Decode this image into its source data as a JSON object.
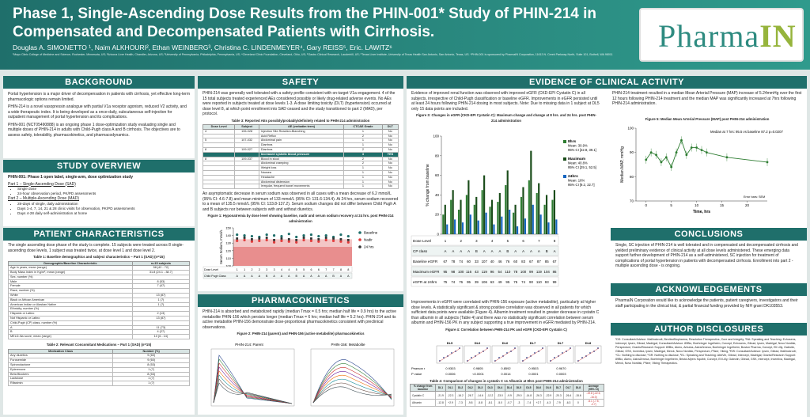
{
  "header": {
    "title": "Phase 1, Single-Ascending Dose Results from the PHIN-001* Study of PHIN-214 in Compensated and Decompensated Patients with Cirrhosis.",
    "authors": "Douglas A. SIMONETTO ¹, Naim ALKHOURI², Ethan WEINBERG³, Christina C. LINDENMEYER⁴, Gary REISS⁵, Eric. LAWITZ⁶",
    "affiliations": "¹Mayo Clinic College of Medicine and Science, Rochester, Minnesota, US; ²Arizona Liver Health, Chandler, Arizona, US; ³University of Pennsylvania, Philadelphia, Pennsylvania, US; ⁴Cleveland Clinic Foundation, Cleveland, Ohio, US; ⁵Gastro Clinical Research, Lauderhill, US; ⁶Texas Liver Institute, University of Texas Health San Antonio, San Antonio, Texas, US. *PHIN-001 is sponsored by PharmaIN Corporation, 11613 N. Creek Parkway North, Suite 101, Bothell, WA 98011",
    "logo_main": "Pharma",
    "logo_accent": "IN"
  },
  "background": {
    "heading": "BACKGROUND",
    "p1": "Portal hypertension is a major driver of decompensation in patients with cirrhosis, yet effective long-term pharmacologic options remain limited.",
    "p2": "PHIN-214 is a novel vasopressin analogue with partial V1a receptor agonism, reduced V2 activity, and a wide therapeutic index. It is being developed as a once-daily, subcutaneous self-injection for outpatient management of portal hypertension and its complications.",
    "p3": "PHIN-001 (NCT05490888) is an ongoing phase 1 dose-optimization study evaluating single and multiple doses of PHIN-214 in adults with Child-Pugh class A and B cirrhosis. The objectives are to assess safety, tolerability, pharmacokinetics, and pharmacodynamics."
  },
  "study": {
    "heading": "STUDY OVERVIEW",
    "subtitle": "PHIN-001: Phase 1 open label, single-arm, dose optimization study",
    "part1": "Part 1 – Single-Ascending Dose (SAD)",
    "part1_items": [
      "Single dose",
      "24-hour observation period, PK/PD assessments"
    ],
    "part2": "Part 2 – Multiple-Ascending Dose (MAD)",
    "part2_items": [
      "28-days of single, daily administration",
      "Days 1-4, 7, 14, 21 & 28 clinic visits for observation, PK/PD assessments",
      "Days 4-28 daily self-administration at home"
    ]
  },
  "patients": {
    "heading": "PATIENT CHARACTERISTICS",
    "intro": "The single ascending dose phase of the study is complete. 15 subjects were treated across 8 single-ascending dose levels, 1 subject was treated twice, at dose level 1 and dose level 2.",
    "table1_title": "Table 1: Baseline demographics and subject characteristics – Part 1 (SAD) (n=15)",
    "table1_head": [
      "Demographic/Baseline Characteristic",
      "n=15 subjects"
    ],
    "table1_rows": [
      [
        "Age in years, mean (range)",
        "58 (42 - 72)"
      ],
      [
        "Body Mass Index in Kg/m², mean (range)",
        "31.8 (24.1 - 38.7)"
      ],
      [
        "Sex, number (%)",
        ""
      ],
      [
        "   Male",
        "8 (53)"
      ],
      [
        "   Female",
        "7 (47)"
      ],
      [
        "Race, number (%)",
        ""
      ],
      [
        "   White",
        "13 (87)"
      ],
      [
        "   Black or African American",
        "1 (7)"
      ],
      [
        "   American Indian or Alaskan Native",
        "1 (7)"
      ],
      [
        "Ethnicity, number (%)",
        ""
      ],
      [
        "   Hispanic or Latino",
        "2 (13)"
      ],
      [
        "   Not Hispanic or Latino",
        "13 (87)"
      ],
      [
        "Child-Pugh (CP) class, number (%)",
        ""
      ],
      [
        "   A",
        "11 (73)"
      ],
      [
        "   B",
        "4 (27)"
      ],
      [
        "MELD-Na score, mean (range)",
        "10 (6 - 14)"
      ]
    ],
    "table2_title": "Table 2: Relevant Concomitant Medications – Part 1 (SAD) (n=15)",
    "table2_head": [
      "Medication Class",
      "Number (%)"
    ],
    "table2_rows": [
      [
        "Any diuretics",
        "9 (60)"
      ],
      [
        "   Furosemide",
        "9 (60)"
      ],
      [
        "   Spironolactone",
        "8 (53)"
      ],
      [
        "   Eplerenone",
        "1 (7)"
      ],
      [
        "Beta Blockers",
        "8 (53)"
      ],
      [
        "Lactulose",
        "1 (7)"
      ],
      [
        "Rifaximin",
        "1 (7)"
      ]
    ]
  },
  "safety": {
    "heading": "SAFETY",
    "p1": "PHIN-214 was generally well tolerated with a safety profile consistent with on-target V1a engagement. 4 of the 15 total subjects treated experienced AEs considered possibly or likely drug-related adverse events. No AEs were reported in subjects treated at dose levels 1-3. A dose limiting toxicity (DLT) (hypertension) occurred at dose level 8, at which point enrollment into SAD ceased and the study transitioned to part 2 (MAD), per protocol.",
    "table3_title": "Table 3: Reported AEs possibly/probably/definitely related to PHIN-214 administration",
    "table3_head": [
      "Dose Level",
      "Subject",
      "AE (verbatim term)",
      "CTCAE Grade",
      "DLT"
    ],
    "table3_rows": [
      [
        "4",
        "106-028",
        "Injection Site Reaction-Blanching",
        "1",
        "No",
        ""
      ],
      [
        "",
        "",
        "Acid Reflux",
        "2",
        "No",
        ""
      ],
      [
        "5",
        "107-032",
        "Abdominal pain",
        "1",
        "No",
        ""
      ],
      [
        "",
        "",
        "Diarrhea",
        "1",
        "No",
        ""
      ],
      [
        "8",
        "109-027",
        "Diarrhea",
        "2",
        "No",
        ""
      ],
      [
        "",
        "",
        "Increased systolic blood pressure",
        "3",
        "YES",
        "hl"
      ],
      [
        "8",
        "109-037",
        "Blood in stool",
        "2",
        "No",
        ""
      ],
      [
        "",
        "",
        "Abdominal cramping",
        "2",
        "No",
        ""
      ],
      [
        "",
        "",
        "Weight loss",
        "1",
        "No",
        ""
      ],
      [
        "",
        "",
        "Nausea",
        "1",
        "No",
        ""
      ],
      [
        "",
        "",
        "Headache",
        "1",
        "No",
        ""
      ],
      [
        "",
        "",
        "Abdominal distension",
        "1",
        "No",
        ""
      ],
      [
        "",
        "",
        "Irregular, frequent bowel movements",
        "1",
        "No",
        ""
      ]
    ],
    "p2": "An asymptomatic decrease in serum sodium was observed in all cases with a mean decrease of 6.2 mmol/L (95% CI: 4.6-7.8) and mean minimum of 133 mmol/L (95% CI: 131.6-134.4). At 24 hrs, serum sodium recovered to a mean of 135.5 mmol/L (95% CI: 133.8-137.2). Serum sodium changes did not differ between Child Pugh A and B subjects nor between subjects with and without diuretics.",
    "fig1_title": "Figure 1: Hyponatremia by dose level showing baseline, nadir and serum sodium recovery at 24 hrs. post PHIN-214 administration"
  },
  "pk": {
    "heading": "PHARMACOKINETICS",
    "p1": "PHIN-214 is absorbed and metabolized rapidly (median Tmax = 0.5 hrs; median half life = 0.9 hrs) to the active metabolite PHIN-156 which persists longer (median Tmax = 6 hrs; median half life = 5.2 hrs). PHIN-214 and its active metabolite PHIN-156 demonstrate dose-proportional pharmacokinetics consistent with preclinical observations.",
    "fig2_title": "Figure 2: PHIN-214 (parent) and PHIN-156 (active metabolite) pharmacokinetics",
    "fig2_left": "PHIN-214: Parent",
    "fig2_right": "PHIN-156: Metabolite"
  },
  "evidence": {
    "heading": "EVIDENCE OF CLINICAL ACTIVITY",
    "p1": "Evidence of improved renal function was observed with improved eGFR (CKD-EPI Cystatin C) in all subjects, irrespective of Child-Pugh classification or baseline eGFR. Improvements in eGFR persisted until at least 24 hours following PHIN-214 dosing in most subjects. Note: Due to missing data in 1 subject at DL5 only 15 data points are included.",
    "fig3_title": "Figure 3: Changes in eGFR (CKD-EPI Cystatin C): Maximum change and change at 8 hrs. and 24 hrs. post PHIN-214 administration",
    "p2": "Improvements in eGFR were correlated with PHIN-156 exposure (active metabolite), particularly at higher dose levels. A statistically significant & strong positive correlation was observed in all patients for which sufficient data points were available (Figure 4). Albumin treatment resulted in greater decrease in cystatin C than albumin in all subjects (Table 4) and there was no statistically significant correlation between serum albumin and PHIN-156 PK in any subject supporting a true improvement in eGFR mediated by PHIN-214.",
    "fig4_title": "Figure 4: Correlation between PHIN-214 PK and eGFR (CKD-EPI Cystatin C)",
    "table4_title": "Table 4: Comparison of changes in cystatin C vs Albumin at 8hrs post PHIN-214 administration",
    "p3": "PHIN-214 treatment resulted in a median Mean Arterial Pressure (MAP) increase of 5.24mmHg over the first 12 hours following PHIN-214 treatment and the median MAP was significantly increased at 7hrs following PHIN-214 administration.",
    "fig5_title": "Figure 5: Median Mean Arterial Pressure (MAP) post PHIN-214 administration"
  },
  "conclusions": {
    "heading": "CONCLUSIONS",
    "text": "Single, SC injection of PHIN-214 is well tolerated and in compensated and decompensated cirrhosis and yielded preliminary evidence of clinical activity at all dose levels administered. These emerging data support further development of PHIN-214 as a self-administered, SC injection for treatment of complications of portal hypertension in patients with decompensated cirrhosis. Enrollment into part 2 - multiple ascending dose - is ongoing."
  },
  "ack": {
    "heading": "ACKNOWLEDGEMENTS",
    "text": "PharmaIN Corporation would like to acknowledge the patients, patient caregivers, investigators and their staff participating in the clinical trial, & partial financial funding provided by NIH grant DK103553."
  },
  "disclosures": {
    "heading": "AUTHOR DISCLOSURES",
    "text": "¹DS: Consultant/Advisor: Mallinckrodt, BenitecBiopharma, Resolution Therapeutics, Cure and Integrity; ²NA: Speaking and Teaching: Echosens, Intercept, Ipsen, Gilead, Madrigal; Consultant/Advisor: 89Bio, Boehringer Ingelheim, Corcept, Echosens, Gilead, Ipsen, Madrigal, Novo Nordisk, Perspectum; Grants/Research Support: 89Bio, Akero, Arbutus, AstraZeneca, Boehringer Ingelheim, Boston Pharma, Corcept, Eli Lilly, Galectin, Gilead, GSK, Inventiva, Ipsen, Madrigal, Merck, Novo Nordisk, Perspectum, Pfizer, Viking; ³EW: Consultant/Advisor: Ipsen, Gilead, Mallinckrodt; ⁴CL: Nothing to disclose; ⁵GR: Nothing to disclose; ⁶EL: Speaking and Teaching: AbbVie, Gilead, Intercept, Madrigal; Grants/Research Support: 89Bio, Akero, AstraZeneca, Boehringer Ingelheim, Bristol-Myers Squibb, Corcept, Eli Lilly, Galectin, Gilead, GSK, Intercept, Inventiva, Madrigal, Merck, Novo Nordisk, Pfizer, Viking Therapeutics.",
    "lines": 12
  },
  "chart_data": [
    {
      "type": "scatter",
      "id": "figure-1-sodium",
      "ylabel": "Serum Sodium, mmol/L",
      "ylim": [
        100,
        150
      ],
      "yticks": [
        100,
        110,
        120,
        130,
        140,
        150
      ],
      "series": [
        {
          "name": "Baseline",
          "color": "#1f6f6b",
          "values": [
            141,
            140,
            139,
            138,
            141,
            140,
            139,
            142,
            138,
            140,
            141,
            139,
            140,
            138,
            141,
            139
          ]
        },
        {
          "name": "Nadir",
          "color": "#e03a3a",
          "values": [
            133,
            134,
            132,
            133,
            134,
            131,
            133,
            132,
            131,
            134,
            133,
            132,
            134,
            133,
            132,
            131
          ]
        },
        {
          "name": "24 hrs",
          "color": "#333333",
          "values": [
            136,
            137,
            135,
            136,
            137,
            134,
            136,
            135,
            134,
            137,
            136,
            135,
            137,
            136,
            135,
            134
          ]
        }
      ],
      "row1_label": "Dose Level",
      "row1": [
        "1",
        "1",
        "2",
        "2",
        "3",
        "3",
        "4",
        "4",
        "5",
        "5",
        "6",
        "6",
        "7",
        "7",
        "8",
        "8"
      ],
      "row2_label": "Child Pugh Class",
      "row2": [
        "A",
        "A",
        "A",
        "A",
        "B",
        "A",
        "A",
        "A",
        "B",
        "A",
        "A",
        "A",
        "A",
        "B",
        "A",
        "A"
      ]
    },
    {
      "type": "bar",
      "id": "figure-3-egfr",
      "ylabel": "% change from baseline",
      "ylim": [
        0,
        100
      ],
      "yticks": [
        0,
        20,
        40,
        60,
        80,
        100
      ],
      "legend": [
        {
          "name": "8hrs",
          "detail1": "Mean: 30.9%",
          "detail2": "95% CI [22.8, 39.1]",
          "color": "#2e7d32"
        },
        {
          "name": "Maximum",
          "detail1": "Mean: 40.8%",
          "detail2": "95% CI [29.1, 52.5]",
          "color": "#1b4d1b"
        },
        {
          "name": "24hrs",
          "detail1": "Mean: 16%",
          "detail2": "95% CI [9.2, 22.7]",
          "color": "#1565c0"
        }
      ],
      "groups": [
        [
          20,
          30,
          10
        ],
        [
          35,
          45,
          15
        ],
        [
          25,
          35,
          12
        ],
        [
          40,
          55,
          20
        ],
        [
          30,
          38,
          14
        ],
        [
          45,
          60,
          22
        ],
        [
          28,
          35,
          10
        ],
        [
          33,
          42,
          18
        ],
        [
          50,
          65,
          25
        ],
        [
          22,
          30,
          8
        ],
        [
          38,
          48,
          16
        ],
        [
          55,
          85,
          30
        ],
        [
          42,
          52,
          20
        ],
        [
          30,
          40,
          12
        ],
        [
          35,
          45,
          15
        ]
      ],
      "table_rows": [
        {
          "label": "Dose Level",
          "values": [
            "1",
            "",
            "2",
            "",
            "3",
            "",
            "4",
            "",
            "5",
            "",
            "6",
            "",
            "7",
            "",
            "8"
          ]
        },
        {
          "label": "CP class",
          "values": [
            "A",
            "A",
            "A",
            "A",
            "B",
            "A",
            "A",
            "A",
            "B",
            "A",
            "A",
            "A",
            "A",
            "B",
            "A"
          ]
        },
        {
          "label": "Baseline eGFR",
          "values": [
            "67",
            "78",
            "74",
            "60",
            "33",
            "107",
            "40",
            "46",
            "76",
            "60",
            "83",
            "67",
            "87",
            "85",
            "67"
          ]
        },
        {
          "label": "Maximum eGFR",
          "values": [
            "95",
            "98",
            "100",
            "116",
            "43",
            "119",
            "96",
            "54",
            "110",
            "78",
            "100",
            "99",
            "119",
            "104",
            "86"
          ]
        },
        {
          "label": "eGFR at 24hrs",
          "values": [
            "75",
            "74",
            "76",
            "95",
            "39",
            "106",
            "63",
            "49",
            "95",
            "75",
            "74",
            "90",
            "110",
            "93",
            "99"
          ]
        }
      ]
    },
    {
      "type": "scatter",
      "id": "figure-4-correlation",
      "panels": [
        "DL5",
        "DL6",
        "DL6",
        "DL7",
        "DL7",
        "DL8"
      ],
      "pearson_label": "Pearson r",
      "p_label": "P value",
      "pearson": [
        "0.9303",
        "0.9805",
        "0.8592",
        "0.9503",
        "0.9670"
      ],
      "pvalue": [
        "0.0006",
        "<0.0001",
        "0.0014",
        "0.0001",
        "0.0003"
      ]
    },
    {
      "type": "table",
      "id": "table-4",
      "head": [
        "% change from baseline",
        "DL1",
        "DL1",
        "DL2",
        "DL2",
        "DL3",
        "DL3",
        "DL4",
        "DL4",
        "DL5",
        "DL5",
        "DL6",
        "DL6",
        "DL7",
        "DL7",
        "DL8",
        "Average (95% CI)"
      ],
      "rows": [
        [
          "Cystatin C",
          "-21.9",
          "-22.3",
          "-16.2",
          "-26.7",
          "-14.6",
          "-12.2",
          "-23.0",
          "-9.9",
          "-29.0",
          "-14.8",
          "-26.3",
          "-22.9",
          "-20.3",
          "-26.4",
          "-15.6",
          "-19.8 (-22.5, -16.0)"
        ],
        [
          "Albumin",
          "-12.8",
          "+2.9",
          "-7.3",
          "-9.8",
          "-5.8",
          "-8.1",
          "-5.0",
          "-0.7",
          "-3",
          "-7.4",
          "+2.7",
          "-4.3",
          "-7.9",
          "-6.3",
          "0",
          "-5.1 (-7.5, -2.7)"
        ]
      ]
    },
    {
      "type": "line",
      "id": "figure-5-map",
      "xlabel": "Time, hrs",
      "ylabel": "Median MAP, mmHg",
      "xlim": [
        -2,
        24
      ],
      "ylim": [
        70,
        100
      ],
      "xticks": [
        0,
        5,
        10,
        15,
        20
      ],
      "yticks": [
        70,
        80,
        90,
        100
      ],
      "annotation": "Median at 7 hrs: 95.5 vs baseline 87.2 p=0.0207",
      "errorbar_label": "Error bars: SEM",
      "x": [
        0,
        1,
        2,
        3,
        4,
        5,
        6,
        7,
        8,
        9,
        10,
        11,
        12,
        16,
        24
      ],
      "values": [
        87,
        90,
        89,
        86,
        88,
        84,
        90,
        95,
        89,
        92,
        92,
        91,
        90,
        88,
        86
      ]
    }
  ]
}
